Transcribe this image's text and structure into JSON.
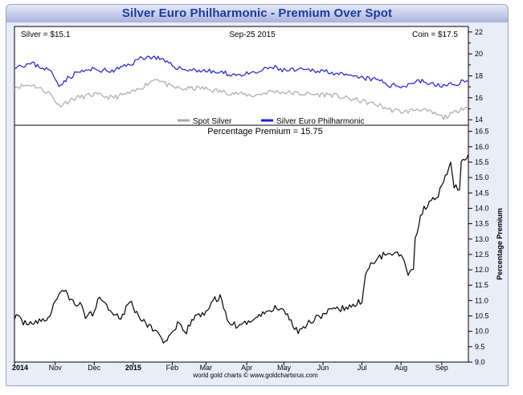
{
  "header": {
    "title": "Silver Euro Philharmonic - Premium Over Spot"
  },
  "top_panel": {
    "silver_label": "Silver = $15.1",
    "date_label": "Sep-25  2015",
    "coin_label": "Coin = $17.5",
    "legend": [
      {
        "name": "Spot Silver",
        "color": "#aaaaaa"
      },
      {
        "name": "Silver Euro Philharmonic",
        "color": "#1f1fd6"
      }
    ]
  },
  "bottom_panel": {
    "label": "Percentage Premium = 15.75",
    "ylabel": "Percentage Premium"
  },
  "footer": {
    "credit": "world gold charts © www.goldchartsrus.com"
  },
  "colors": {
    "silver": "#aaaaaa",
    "coin": "#1f1fd6",
    "premium": "#000000",
    "title": "#1c3aa0"
  },
  "chart_data": [
    {
      "type": "line",
      "title": "Silver Euro Philharmonic - Premium Over Spot",
      "xlabel": "",
      "ylabel": "",
      "ylim": [
        13.5,
        22.5
      ],
      "yticks": [
        14,
        16,
        18,
        20,
        22
      ],
      "x_tick_labels": [
        "2014",
        "Nov",
        "Dec",
        "2015",
        "Feb",
        "Mar",
        "Apr",
        "May",
        "Jun",
        "Jul",
        "Aug",
        "Sep"
      ],
      "x_tick_index": [
        0,
        23,
        45,
        67,
        89,
        108,
        131,
        152,
        174,
        196,
        218,
        241
      ],
      "series": [
        {
          "name": "Spot Silver",
          "color": "#aaaaaa",
          "anchors": [
            [
              0,
              17.0
            ],
            [
              10,
              17.2
            ],
            [
              20,
              16.4
            ],
            [
              25,
              15.3
            ],
            [
              35,
              16.0
            ],
            [
              45,
              16.3
            ],
            [
              55,
              16.0
            ],
            [
              67,
              16.5
            ],
            [
              72,
              17.0
            ],
            [
              80,
              17.8
            ],
            [
              88,
              17.0
            ],
            [
              95,
              16.8
            ],
            [
              105,
              16.9
            ],
            [
              115,
              16.6
            ],
            [
              125,
              16.4
            ],
            [
              135,
              16.2
            ],
            [
              145,
              16.6
            ],
            [
              152,
              16.5
            ],
            [
              160,
              16.4
            ],
            [
              170,
              16.3
            ],
            [
              178,
              16.3
            ],
            [
              186,
              16.0
            ],
            [
              196,
              15.7
            ],
            [
              206,
              15.3
            ],
            [
              212,
              14.9
            ],
            [
              220,
              14.7
            ],
            [
              228,
              15.0
            ],
            [
              236,
              14.6
            ],
            [
              242,
              14.2
            ],
            [
              248,
              14.6
            ],
            [
              252,
              15.1
            ],
            [
              256,
              15.1
            ]
          ]
        },
        {
          "name": "Silver Euro Philharmonic",
          "color": "#1f1fd6",
          "anchors": [
            [
              0,
              18.9
            ],
            [
              10,
              19.1
            ],
            [
              20,
              18.5
            ],
            [
              25,
              17.2
            ],
            [
              35,
              18.3
            ],
            [
              45,
              18.6
            ],
            [
              55,
              18.4
            ],
            [
              67,
              19.2
            ],
            [
              72,
              19.7
            ],
            [
              80,
              19.7
            ],
            [
              88,
              19.0
            ],
            [
              95,
              18.6
            ],
            [
              105,
              18.5
            ],
            [
              115,
              18.3
            ],
            [
              125,
              18.1
            ],
            [
              135,
              18.2
            ],
            [
              145,
              18.8
            ],
            [
              152,
              18.5
            ],
            [
              160,
              18.5
            ],
            [
              170,
              18.5
            ],
            [
              178,
              18.4
            ],
            [
              186,
              18.0
            ],
            [
              196,
              17.8
            ],
            [
              206,
              17.6
            ],
            [
              212,
              17.1
            ],
            [
              220,
              17.1
            ],
            [
              228,
              17.6
            ],
            [
              236,
              17.2
            ],
            [
              242,
              17.1
            ],
            [
              248,
              17.2
            ],
            [
              252,
              17.5
            ],
            [
              256,
              17.5
            ]
          ]
        }
      ]
    },
    {
      "type": "line",
      "title": "Percentage Premium = 15.75",
      "xlabel": "",
      "ylabel": "Percentage Premium",
      "ylim": [
        9.0,
        16.7
      ],
      "yticks": [
        9.0,
        9.5,
        10.0,
        10.5,
        11.0,
        11.5,
        12.0,
        12.5,
        13.0,
        13.5,
        14.0,
        14.5,
        15.0,
        15.5,
        16.0,
        16.5
      ],
      "x_tick_labels": [
        "2014",
        "Nov",
        "Dec",
        "2015",
        "Feb",
        "Mar",
        "Apr",
        "May",
        "Jun",
        "Jul",
        "Aug",
        "Sep"
      ],
      "x_tick_index": [
        0,
        23,
        45,
        67,
        89,
        108,
        131,
        152,
        174,
        196,
        218,
        241
      ],
      "series": [
        {
          "name": "Percentage Premium",
          "color": "#000000",
          "anchors": [
            [
              0,
              10.5
            ],
            [
              5,
              10.3
            ],
            [
              10,
              10.3
            ],
            [
              15,
              10.3
            ],
            [
              20,
              10.5
            ],
            [
              23,
              11.0
            ],
            [
              27,
              11.4
            ],
            [
              32,
              11.0
            ],
            [
              38,
              10.8
            ],
            [
              40,
              10.5
            ],
            [
              45,
              10.6
            ],
            [
              48,
              11.2
            ],
            [
              52,
              10.8
            ],
            [
              57,
              10.6
            ],
            [
              60,
              10.4
            ],
            [
              65,
              11.0
            ],
            [
              70,
              10.5
            ],
            [
              75,
              10.2
            ],
            [
              80,
              10.0
            ],
            [
              84,
              9.7
            ],
            [
              88,
              9.8
            ],
            [
              92,
              10.2
            ],
            [
              97,
              10.0
            ],
            [
              102,
              10.5
            ],
            [
              108,
              10.6
            ],
            [
              112,
              11.0
            ],
            [
              116,
              11.1
            ],
            [
              120,
              10.4
            ],
            [
              126,
              10.1
            ],
            [
              131,
              10.3
            ],
            [
              138,
              10.5
            ],
            [
              144,
              10.7
            ],
            [
              150,
              10.8
            ],
            [
              154,
              10.5
            ],
            [
              160,
              10.0
            ],
            [
              166,
              10.3
            ],
            [
              172,
              10.5
            ],
            [
              176,
              10.6
            ],
            [
              182,
              10.7
            ],
            [
              190,
              10.8
            ],
            [
              196,
              11.0
            ],
            [
              198,
              11.9
            ],
            [
              202,
              12.2
            ],
            [
              208,
              12.5
            ],
            [
              214,
              12.6
            ],
            [
              218,
              12.5
            ],
            [
              222,
              11.9
            ],
            [
              225,
              12.1
            ],
            [
              226,
              13.0
            ],
            [
              230,
              13.9
            ],
            [
              234,
              14.2
            ],
            [
              238,
              14.3
            ],
            [
              241,
              14.8
            ],
            [
              244,
              15.1
            ],
            [
              246,
              15.4
            ],
            [
              248,
              14.7
            ],
            [
              251,
              14.7
            ],
            [
              252,
              15.5
            ],
            [
              254,
              15.5
            ],
            [
              256,
              15.75
            ]
          ]
        }
      ]
    }
  ]
}
